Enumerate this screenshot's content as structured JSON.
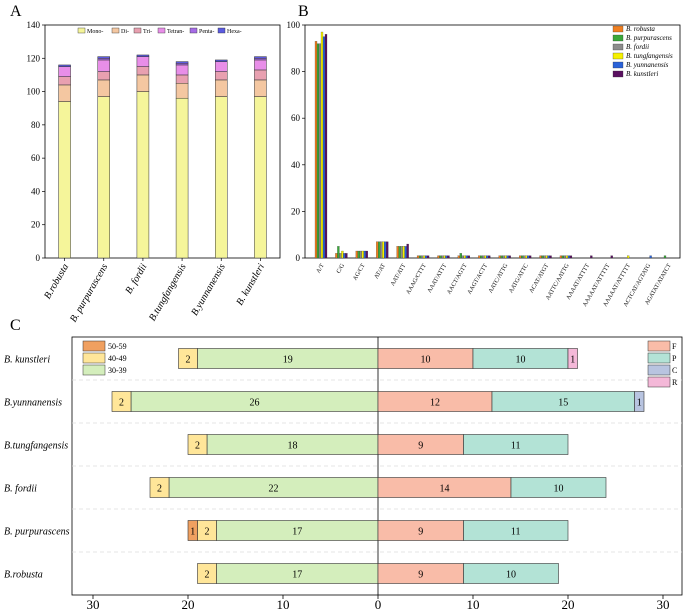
{
  "panels": {
    "a": "A",
    "b": "B",
    "c": "C"
  },
  "chart_data": [
    {
      "panel": "A",
      "type": "bar",
      "stacked": true,
      "categories": [
        "B.robusta",
        "B. purpurascens",
        "B. fordii",
        "B.tungfangensis",
        "B.yunnanensis",
        "B. kunstleri"
      ],
      "series": [
        {
          "name": "Mono-",
          "color": "#f5f59a",
          "values": [
            94,
            97,
            100,
            96,
            97,
            97
          ]
        },
        {
          "name": "Di-",
          "color": "#f4c7a1",
          "values": [
            10,
            10,
            10,
            9,
            10,
            10
          ]
        },
        {
          "name": "Tri-",
          "color": "#e8a0b0",
          "values": [
            5,
            5,
            5,
            5,
            5,
            6
          ]
        },
        {
          "name": "Tetran-",
          "color": "#e88ee8",
          "values": [
            6,
            7,
            6,
            6,
            6,
            6
          ]
        },
        {
          "name": "Penta-",
          "color": "#a66ce6",
          "values": [
            0,
            1,
            0,
            1,
            0,
            1
          ]
        },
        {
          "name": "Hexa-",
          "color": "#5b5be0",
          "values": [
            1,
            1,
            1,
            1,
            1,
            1
          ]
        }
      ],
      "ylim": [
        0,
        140
      ],
      "yticks": [
        0,
        20,
        40,
        60,
        80,
        100,
        120,
        140
      ],
      "xlabel": "",
      "ylabel": ""
    },
    {
      "panel": "B",
      "type": "bar",
      "categories": [
        "A/T",
        "C/G",
        "AG/CT",
        "AT/AT",
        "AAT/ATT",
        "AAAG/CTTT",
        "AAAT/ATTT",
        "AACT/AGTT",
        "AAGT/ACTT",
        "AATC/ATTG",
        "AATG/ATTC",
        "ACAT/ATGT",
        "AATTC/AATTG",
        "AAAAT/ATTTT",
        "AAAAAT/ATTTTT",
        "AAAAAT/ATTTTT",
        "ACTCAT/AGTATG",
        "AGATAT/ATATCT"
      ],
      "series": [
        {
          "name": "B. robusta",
          "color": "#f07f20",
          "values": [
            93,
            2,
            3,
            7,
            5,
            1,
            1,
            1,
            1,
            1,
            1,
            1,
            1,
            0,
            0,
            0,
            0,
            0
          ]
        },
        {
          "name": "B. purpurascens",
          "color": "#3aa83a",
          "values": [
            92,
            5,
            3,
            7,
            5,
            1,
            1,
            2,
            1,
            1,
            1,
            1,
            1,
            0,
            0,
            0,
            0,
            1
          ]
        },
        {
          "name": "B. fordii",
          "color": "#8c8c8c",
          "values": [
            92,
            2,
            3,
            7,
            5,
            1,
            1,
            1,
            1,
            1,
            1,
            1,
            1,
            0,
            0,
            0,
            0,
            0
          ]
        },
        {
          "name": "B. tungfangensis",
          "color": "#f5f000",
          "values": [
            97,
            3,
            3,
            7,
            5,
            1,
            1,
            1,
            1,
            1,
            1,
            1,
            1,
            0,
            0,
            1,
            0,
            0
          ]
        },
        {
          "name": "B. yunnanensis",
          "color": "#2a62d8",
          "values": [
            95,
            2,
            3,
            7,
            5,
            1,
            1,
            1,
            1,
            1,
            1,
            1,
            1,
            0,
            0,
            0,
            1,
            0
          ]
        },
        {
          "name": "B. kunstleri",
          "color": "#5a1060",
          "values": [
            96,
            2,
            3,
            7,
            6,
            1,
            1,
            1,
            1,
            1,
            1,
            1,
            1,
            1,
            1,
            0,
            0,
            0
          ]
        }
      ],
      "ylim": [
        0,
        100
      ],
      "yticks": [
        0,
        20,
        40,
        60,
        80,
        100
      ],
      "legend": "top-right"
    },
    {
      "panel": "C",
      "type": "bar",
      "orientation": "horizontal-diverging",
      "categories": [
        "B. kunstleri",
        "B.yunnanensis",
        "B.tungfangensis",
        "B. fordii",
        "B. purpurascens",
        "B.robusta"
      ],
      "left_series": [
        {
          "name": "50-59",
          "color": "#f0a060",
          "values": [
            0,
            0,
            0,
            0,
            1,
            0
          ]
        },
        {
          "name": "40-49",
          "color": "#ffe699",
          "values": [
            2,
            2,
            2,
            2,
            2,
            2
          ]
        },
        {
          "name": "30-39",
          "color": "#d4eebc",
          "values": [
            19,
            26,
            18,
            22,
            17,
            17
          ]
        }
      ],
      "right_series": [
        {
          "name": "F",
          "color": "#f9bca8",
          "values": [
            10,
            12,
            9,
            14,
            9,
            9
          ]
        },
        {
          "name": "P",
          "color": "#b3e3d6",
          "values": [
            10,
            15,
            11,
            10,
            11,
            10
          ]
        },
        {
          "name": "C",
          "color": "#b8c4e0",
          "values": [
            0,
            1,
            0,
            0,
            0,
            0
          ]
        },
        {
          "name": "R",
          "color": "#f4b8d8",
          "values": [
            1,
            0,
            0,
            0,
            0,
            0
          ]
        }
      ],
      "xlim": [
        -30,
        30
      ],
      "xtick_labels": [
        "30",
        "20",
        "10",
        "0",
        "10",
        "20",
        "30"
      ]
    }
  ]
}
